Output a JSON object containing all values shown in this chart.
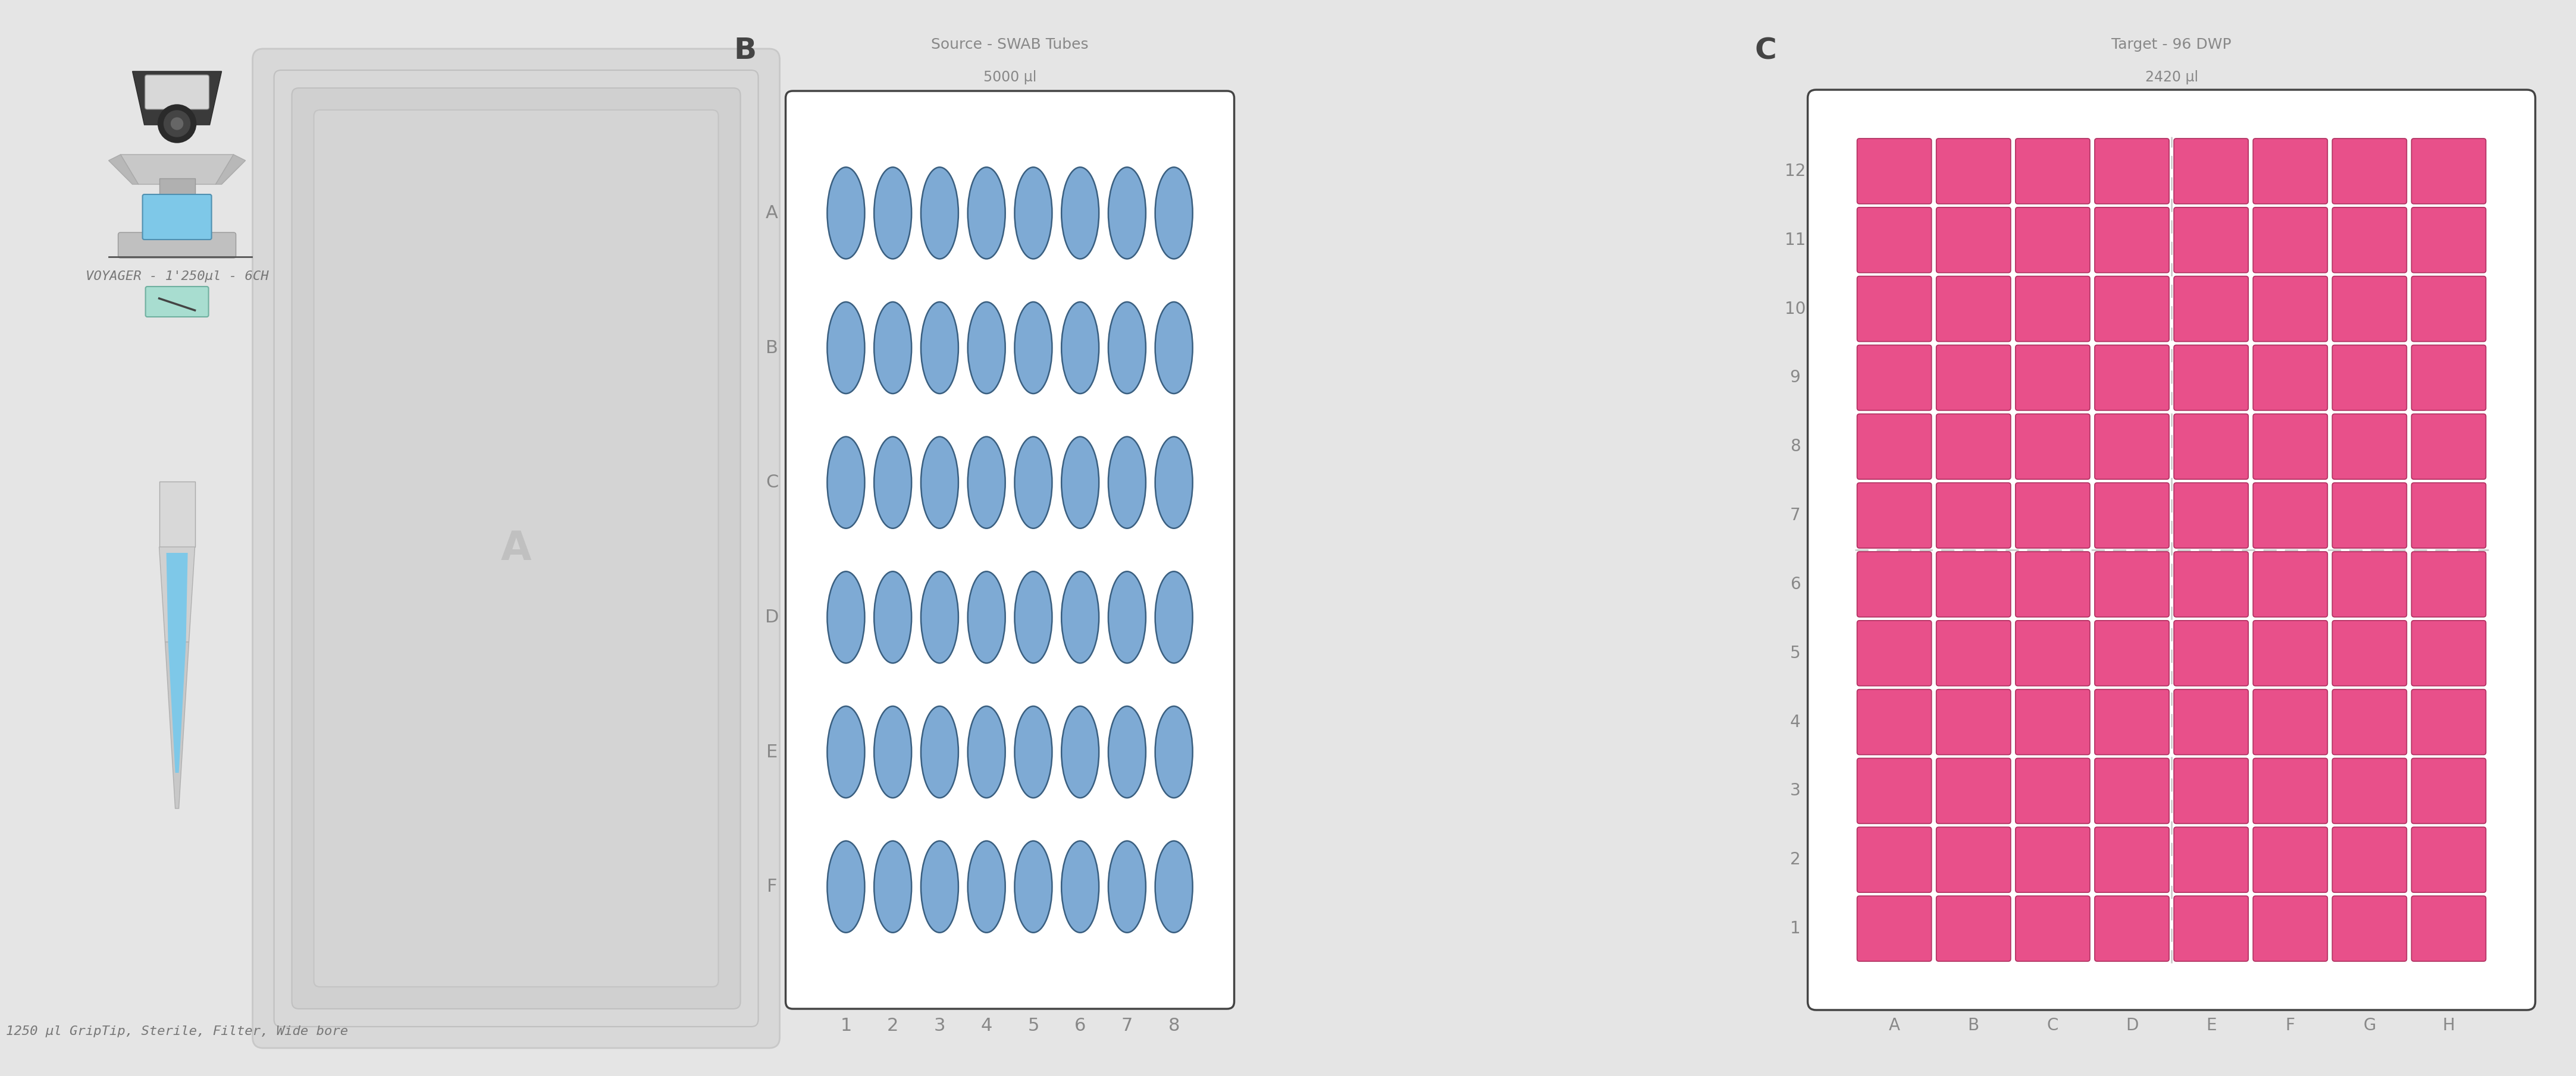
{
  "bg_color": "#e5e5e5",
  "figure_width": 41.98,
  "figure_height": 17.9,
  "voyager_label": "VOYAGER - 1'250µl - 6CH",
  "tip_label": "1250 µl GripTip, Sterile, Filter, Wide bore",
  "slot_a_label": "A",
  "swab_plate_label_top": "B",
  "swab_source_label": "Source - SWAB Tubes",
  "swab_volume_label": "5000 µl",
  "swab_rows": [
    "A",
    "B",
    "C",
    "D",
    "E",
    "F"
  ],
  "swab_cols": [
    1,
    2,
    3,
    4,
    5,
    6,
    7,
    8
  ],
  "swab_circle_color": "#7eaad4",
  "swab_circle_edge": "#3a5f80",
  "swab_plate_bg": "#ffffff",
  "swab_plate_border": "#444444",
  "dwp_plate_label_top": "C",
  "dwp_target_label": "Target - 96 DWP",
  "dwp_volume_label": "2420 µl",
  "dwp_n_rows": 12,
  "dwp_n_cols": 8,
  "dwp_well_color": "#e8508a",
  "dwp_well_border": "#b03060",
  "dwp_plate_bg": "#ffffff",
  "dwp_plate_border": "#444444",
  "label_color": "#888888",
  "label_fontsize": 22
}
